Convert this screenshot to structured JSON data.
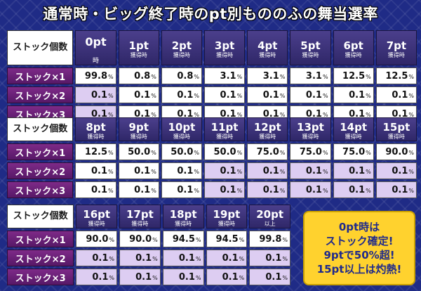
{
  "title": "通常時・ビッグ終了時のpt別もののふの舞当選率",
  "corner_label": "ストック個数",
  "stock_labels": [
    "ストック×1",
    "ストック×2",
    "ストック×3"
  ],
  "percent_unit": "%",
  "tables": [
    {
      "headers": [
        {
          "pt": "0pt",
          "sub": "時",
          "single": true
        },
        {
          "pt": "1pt",
          "sub": "獲得時"
        },
        {
          "pt": "2pt",
          "sub": "獲得時"
        },
        {
          "pt": "3pt",
          "sub": "獲得時"
        },
        {
          "pt": "4pt",
          "sub": "獲得時"
        },
        {
          "pt": "5pt",
          "sub": "獲得時"
        },
        {
          "pt": "6pt",
          "sub": "獲得時"
        },
        {
          "pt": "7pt",
          "sub": "獲得時"
        }
      ],
      "rows": [
        [
          "99.8",
          "0.8",
          "0.8",
          "3.1",
          "3.1",
          "3.1",
          "12.5",
          "12.5"
        ],
        [
          "0.1",
          "0.1",
          "0.1",
          "0.1",
          "0.1",
          "0.1",
          "0.1",
          "0.1"
        ],
        [
          "0.1",
          "0.1",
          "0.1",
          "0.1",
          "0.1",
          "0.1",
          "0.1",
          "0.1"
        ]
      ]
    },
    {
      "headers": [
        {
          "pt": "8pt",
          "sub": "獲得時"
        },
        {
          "pt": "9pt",
          "sub": "獲得時"
        },
        {
          "pt": "10pt",
          "sub": "獲得時"
        },
        {
          "pt": "11pt",
          "sub": "獲得時"
        },
        {
          "pt": "12pt",
          "sub": "獲得時"
        },
        {
          "pt": "13pt",
          "sub": "獲得時"
        },
        {
          "pt": "14pt",
          "sub": "獲得時"
        },
        {
          "pt": "15pt",
          "sub": "獲得時"
        }
      ],
      "rows": [
        [
          "12.5",
          "50.0",
          "50.0",
          "50.0",
          "75.0",
          "75.0",
          "75.0",
          "90.0"
        ],
        [
          "0.1",
          "0.1",
          "0.1",
          "0.1",
          "0.1",
          "0.1",
          "0.1",
          "0.1"
        ],
        [
          "0.1",
          "0.1",
          "0.1",
          "0.1",
          "0.1",
          "0.1",
          "0.1",
          "0.1"
        ]
      ]
    },
    {
      "headers": [
        {
          "pt": "16pt",
          "sub": "獲得時"
        },
        {
          "pt": "17pt",
          "sub": "獲得時"
        },
        {
          "pt": "18pt",
          "sub": "獲得時"
        },
        {
          "pt": "19pt",
          "sub": "獲得時"
        },
        {
          "pt": "20pt",
          "sub": "以上"
        }
      ],
      "rows": [
        [
          "90.0",
          "90.0",
          "94.5",
          "94.5",
          "99.8"
        ],
        [
          "0.1",
          "0.1",
          "0.1",
          "0.1",
          "0.1"
        ],
        [
          "0.1",
          "0.1",
          "0.1",
          "0.1",
          "0.1"
        ]
      ]
    }
  ],
  "callout": {
    "lines": [
      "0pt時は",
      "ストック確定!",
      "9ptで50%超!",
      "15pt以上は灼熱!"
    ]
  },
  "colors": {
    "background": "#1f2b86",
    "header_bg": "#3a3078",
    "row_label_bg": "#6b2078",
    "highlight_cell": "#ddcdf2",
    "callout_bg": "#ffd22e",
    "callout_text": "#1f2a8c"
  }
}
